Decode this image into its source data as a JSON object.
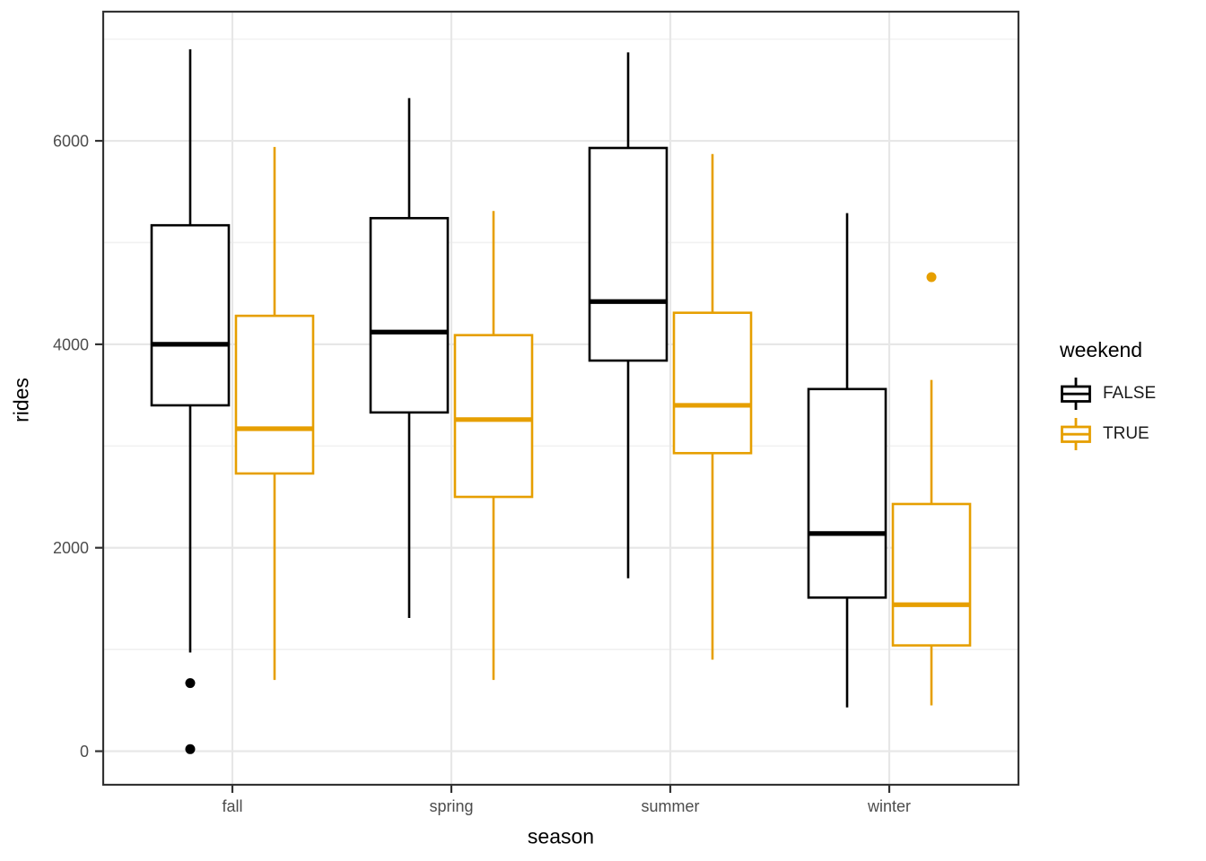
{
  "chart_data": {
    "type": "boxplot",
    "title": "",
    "xlabel": "season",
    "ylabel": "rides",
    "categories": [
      "fall",
      "spring",
      "summer",
      "winter"
    ],
    "y_ticks": [
      0,
      2000,
      4000,
      6000
    ],
    "y_minor_gridlines": [
      1000,
      3000,
      5000,
      7000
    ],
    "ylim": [
      -330,
      7270
    ],
    "grid": "major and minor horizontal + major vertical, light gray on white panel with dark border",
    "legend": {
      "title": "weekend",
      "position": "right",
      "entries": [
        {
          "label": "FALSE",
          "color": "#000000"
        },
        {
          "label": "TRUE",
          "color": "#E69F00"
        }
      ]
    },
    "style": {
      "panel_border": "#333333",
      "grid_major": "#E7E7E7",
      "grid_minor": "#F1F1F1",
      "axis_text_color": "#4D4D4D",
      "axis_title_color": "#000000",
      "background": "#FFFFFF"
    },
    "series": [
      {
        "name": "FALSE",
        "color": "#000000",
        "boxes": [
          {
            "category": "fall",
            "whisker_low": 970,
            "q1": 3400,
            "median": 4000,
            "q3": 5170,
            "whisker_high": 6900,
            "outliers": [
              670,
              20
            ]
          },
          {
            "category": "spring",
            "whisker_low": 1310,
            "q1": 3330,
            "median": 4120,
            "q3": 5240,
            "whisker_high": 6420,
            "outliers": []
          },
          {
            "category": "summer",
            "whisker_low": 1700,
            "q1": 3840,
            "median": 4420,
            "q3": 5930,
            "whisker_high": 6870,
            "outliers": []
          },
          {
            "category": "winter",
            "whisker_low": 430,
            "q1": 1510,
            "median": 2140,
            "q3": 3560,
            "whisker_high": 5290,
            "outliers": []
          }
        ]
      },
      {
        "name": "TRUE",
        "color": "#E69F00",
        "boxes": [
          {
            "category": "fall",
            "whisker_low": 700,
            "q1": 2730,
            "median": 3170,
            "q3": 4280,
            "whisker_high": 5940,
            "outliers": []
          },
          {
            "category": "spring",
            "whisker_low": 700,
            "q1": 2500,
            "median": 3260,
            "q3": 4090,
            "whisker_high": 5310,
            "outliers": []
          },
          {
            "category": "summer",
            "whisker_low": 900,
            "q1": 2930,
            "median": 3400,
            "q3": 4310,
            "whisker_high": 5870,
            "outliers": []
          },
          {
            "category": "winter",
            "whisker_low": 450,
            "q1": 1040,
            "median": 1440,
            "q3": 2430,
            "whisker_high": 3650,
            "outliers": [
              4660
            ]
          }
        ]
      }
    ]
  }
}
